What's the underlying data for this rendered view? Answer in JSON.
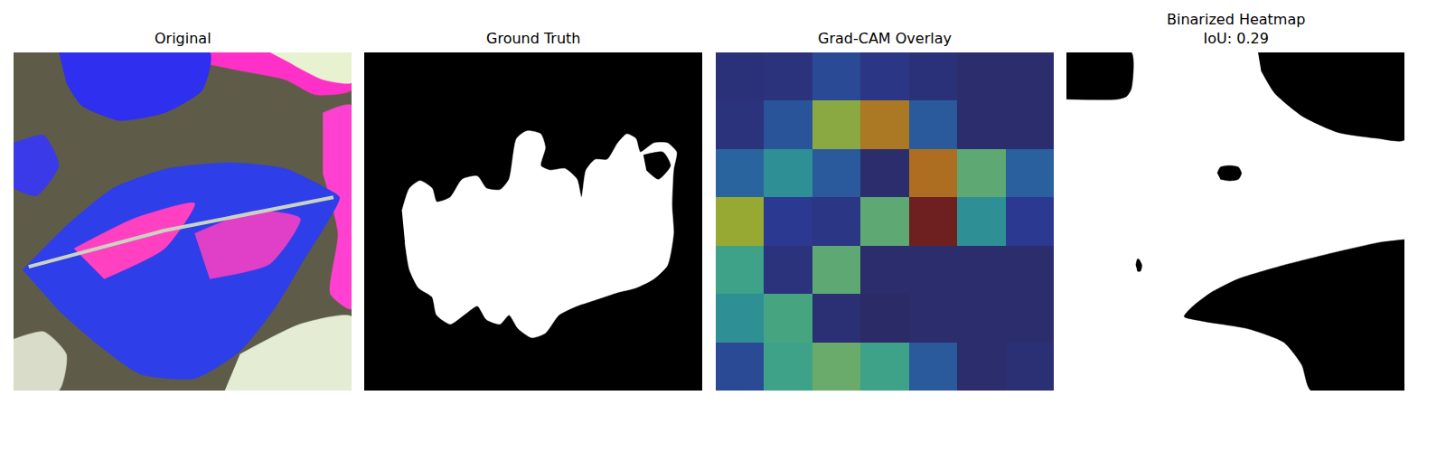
{
  "chart_data": [
    {
      "type": "image",
      "title": "Original",
      "tick_labels": false,
      "xlim": [
        0,
        224
      ],
      "ylim": [
        224,
        0
      ],
      "background": "#5e5c48",
      "regions": [
        {
          "type": "polygon",
          "color": "#ff30c8",
          "points": [
            [
              120,
              0
            ],
            [
              224,
              0
            ],
            [
              224,
              25
            ],
            [
              200,
              28
            ],
            [
              180,
              18
            ],
            [
              150,
              12
            ],
            [
              130,
              8
            ]
          ]
        },
        {
          "type": "polygon",
          "color": "#e8f2d0",
          "points": [
            [
              170,
              0
            ],
            [
              224,
              0
            ],
            [
              224,
              20
            ],
            [
              205,
              18
            ],
            [
              185,
              8
            ]
          ]
        },
        {
          "type": "polygon",
          "color": "#2f2ff0",
          "points": [
            [
              30,
              0
            ],
            [
              130,
              0
            ],
            [
              125,
              25
            ],
            [
              100,
              40
            ],
            [
              70,
              45
            ],
            [
              45,
              35
            ],
            [
              35,
              20
            ]
          ]
        },
        {
          "type": "polygon",
          "color": "#3a3ae8",
          "points": [
            [
              0,
              60
            ],
            [
              20,
              55
            ],
            [
              30,
              75
            ],
            [
              15,
              95
            ],
            [
              0,
              90
            ]
          ]
        },
        {
          "type": "polygon",
          "color": "#d8dcc8",
          "points": [
            [
              0,
              190
            ],
            [
              20,
              185
            ],
            [
              35,
              200
            ],
            [
              30,
              224
            ],
            [
              0,
              224
            ]
          ]
        },
        {
          "type": "polygon",
          "color": "#e4ecd4",
          "points": [
            [
              150,
              200
            ],
            [
              190,
              180
            ],
            [
              224,
              175
            ],
            [
              224,
              224
            ],
            [
              140,
              224
            ]
          ]
        },
        {
          "type": "polygon",
          "color": "#ff40d0",
          "points": [
            [
              205,
              40
            ],
            [
              224,
              35
            ],
            [
              224,
              170
            ],
            [
              210,
              160
            ],
            [
              215,
              120
            ],
            [
              205,
              80
            ]
          ]
        },
        {
          "type": "polygon",
          "color": "#2e3ee8",
          "points": [
            [
              6,
              144
            ],
            [
              36,
              114
            ],
            [
              66,
              90
            ],
            [
              102,
              77
            ],
            [
              144,
              73
            ],
            [
              180,
              77
            ],
            [
              207,
              90
            ],
            [
              216,
              96
            ],
            [
              207,
              114
            ],
            [
              192,
              138
            ],
            [
              174,
              168
            ],
            [
              150,
              198
            ],
            [
              120,
              216
            ],
            [
              84,
              213
            ],
            [
              54,
              192
            ],
            [
              30,
              171
            ]
          ]
        },
        {
          "type": "polygon",
          "color": "#ff40c0",
          "points": [
            [
              40,
              130
            ],
            [
              80,
              110
            ],
            [
              120,
              100
            ],
            [
              100,
              130
            ],
            [
              60,
              150
            ]
          ]
        },
        {
          "type": "polygon",
          "color": "#e040c8",
          "points": [
            [
              120,
              120
            ],
            [
              160,
              105
            ],
            [
              190,
              110
            ],
            [
              170,
              140
            ],
            [
              130,
              150
            ]
          ]
        },
        {
          "type": "line",
          "color": "#c8d4c0",
          "points": [
            [
              10,
              142
            ],
            [
              100,
              118
            ],
            [
              212,
              96
            ]
          ]
        }
      ]
    },
    {
      "type": "mask",
      "title": "Ground Truth",
      "tick_labels": false,
      "xlim": [
        0,
        224
      ],
      "ylim": [
        224,
        0
      ],
      "background": "#000000",
      "regions": [
        {
          "type": "polygon",
          "color": "#ffffff",
          "points": [
            [
              25,
              105
            ],
            [
              30,
              90
            ],
            [
              37,
              85
            ],
            [
              45,
              90
            ],
            [
              48,
              99
            ],
            [
              57,
              96
            ],
            [
              65,
              84
            ],
            [
              75,
              82
            ],
            [
              81,
              90
            ],
            [
              90,
              91
            ],
            [
              96,
              84
            ],
            [
              101,
              57
            ],
            [
              108,
              52
            ],
            [
              117,
              54
            ],
            [
              120,
              63
            ],
            [
              117,
              75
            ],
            [
              123,
              78
            ],
            [
              133,
              77
            ],
            [
              141,
              84
            ],
            [
              144,
              96
            ],
            [
              147,
              78
            ],
            [
              153,
              71
            ],
            [
              161,
              71
            ],
            [
              168,
              60
            ],
            [
              174,
              54
            ],
            [
              180,
              57
            ],
            [
              183,
              66
            ],
            [
              192,
              60
            ],
            [
              201,
              60
            ],
            [
              207,
              66
            ],
            [
              205,
              78
            ],
            [
              204,
              102
            ],
            [
              205,
              120
            ],
            [
              201,
              141
            ],
            [
              192,
              150
            ],
            [
              180,
              156
            ],
            [
              168,
              159
            ],
            [
              159,
              162
            ],
            [
              150,
              165
            ],
            [
              141,
              168
            ],
            [
              129,
              174
            ],
            [
              120,
              186
            ],
            [
              111,
              189
            ],
            [
              102,
              183
            ],
            [
              96,
              174
            ],
            [
              90,
              180
            ],
            [
              81,
              177
            ],
            [
              75,
              168
            ],
            [
              66,
              174
            ],
            [
              57,
              180
            ],
            [
              48,
              174
            ],
            [
              45,
              162
            ],
            [
              36,
              156
            ],
            [
              30,
              144
            ],
            [
              27,
              126
            ]
          ]
        },
        {
          "type": "polygon",
          "color": "#000000",
          "points": [
            [
              185,
              68
            ],
            [
              198,
              66
            ],
            [
              203,
              75
            ],
            [
              195,
              84
            ],
            [
              187,
              78
            ]
          ]
        }
      ]
    },
    {
      "type": "heatmap",
      "title": "Grad-CAM Overlay",
      "tick_labels": false,
      "xlim": [
        0,
        224
      ],
      "ylim": [
        224,
        0
      ],
      "zlim": [
        0,
        1
      ],
      "z": [
        [
          0.1,
          0.12,
          0.25,
          0.15,
          0.1,
          0.05,
          0.05
        ],
        [
          0.12,
          0.28,
          0.65,
          0.8,
          0.3,
          0.05,
          0.05
        ],
        [
          0.33,
          0.42,
          0.3,
          0.05,
          0.82,
          0.55,
          0.32
        ],
        [
          0.68,
          0.2,
          0.15,
          0.55,
          1.0,
          0.42,
          0.2
        ],
        [
          0.48,
          0.12,
          0.55,
          0.05,
          0.05,
          0.05,
          0.05
        ],
        [
          0.42,
          0.5,
          0.08,
          0.03,
          0.05,
          0.05,
          0.05
        ],
        [
          0.25,
          0.48,
          0.58,
          0.48,
          0.3,
          0.05,
          0.08
        ]
      ]
    },
    {
      "type": "mask",
      "title": "Binarized Heatmap\nIoU: 0.29",
      "tick_labels": false,
      "xlim": [
        0,
        224
      ],
      "ylim": [
        224,
        0
      ],
      "background": "#ffffff",
      "regions": [
        {
          "type": "polygon",
          "color": "#000000",
          "points": [
            [
              0,
              0
            ],
            [
              43,
              0
            ],
            [
              43,
              24
            ],
            [
              40,
              29
            ],
            [
              34,
              31
            ],
            [
              0,
              31
            ]
          ]
        },
        {
          "type": "polygon",
          "color": "#000000",
          "points": [
            [
              127,
              0
            ],
            [
              224,
              0
            ],
            [
              224,
              58
            ],
            [
              207,
              57
            ],
            [
              180,
              53
            ],
            [
              156,
              42
            ],
            [
              138,
              27
            ],
            [
              129,
              12
            ]
          ]
        },
        {
          "type": "polygon",
          "color": "#000000",
          "points": [
            [
              224,
              124
            ],
            [
              207,
              126
            ],
            [
              180,
              132
            ],
            [
              144,
              141
            ],
            [
              114,
              150
            ],
            [
              96,
              159
            ],
            [
              84,
              168
            ],
            [
              78,
              175
            ],
            [
              90,
              178
            ],
            [
              120,
              183
            ],
            [
              144,
              192
            ],
            [
              156,
              207
            ],
            [
              162,
              224
            ],
            [
              224,
              224
            ]
          ]
        },
        {
          "type": "polygon",
          "color": "#000000",
          "points": [
            [
              100,
              80
            ],
            [
              102,
              76
            ],
            [
              108,
              75
            ],
            [
              114,
              76
            ],
            [
              116,
              80
            ],
            [
              114,
              84
            ],
            [
              108,
              85
            ],
            [
              102,
              84
            ]
          ]
        },
        {
          "type": "polygon",
          "color": "#000000",
          "points": [
            [
              46,
              141
            ],
            [
              47,
              137
            ],
            [
              48,
              137
            ],
            [
              50,
              141
            ],
            [
              49,
              145
            ],
            [
              47,
              145
            ]
          ]
        }
      ]
    }
  ]
}
